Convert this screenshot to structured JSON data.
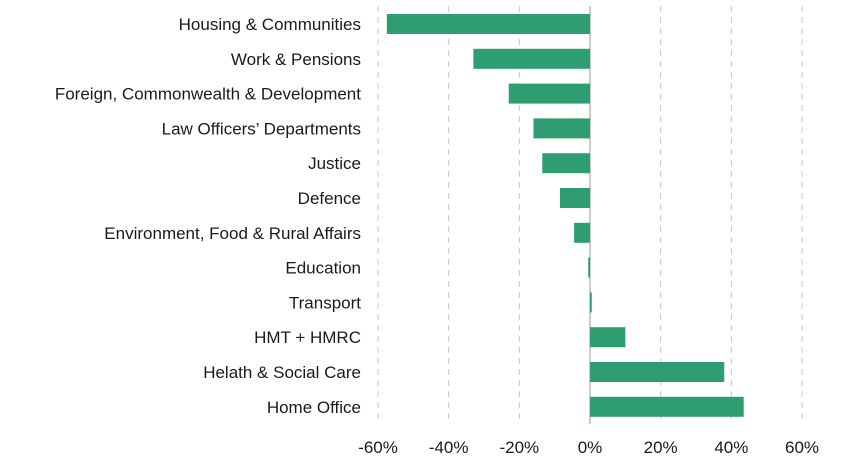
{
  "chart_data": {
    "type": "bar",
    "orientation": "horizontal",
    "title": "",
    "xlabel": "",
    "ylabel": "",
    "categories": [
      "Housing & Communities",
      "Work & Pensions",
      "Foreign, Commonwealth & Development",
      "Law Officers’ Departments",
      "Justice",
      "Defence",
      "Environment, Food & Rural Affairs",
      "Education",
      "Transport",
      "HMT + HMRC",
      "Helath & Social Care",
      "Home Office"
    ],
    "values": [
      -57.5,
      -33,
      -23,
      -16,
      -13.5,
      -8.5,
      -4.5,
      -0.5,
      0.5,
      10,
      38,
      43.5
    ],
    "xlim": [
      -60,
      60
    ],
    "xticks": [
      -60,
      -40,
      -20,
      0,
      20,
      40,
      60
    ],
    "xtick_labels": [
      "-60%",
      "-40%",
      "-20%",
      "0%",
      "20%",
      "40%",
      "60%"
    ],
    "grid": "vertical dashed",
    "legend": "none",
    "bar_color": "#2e9e72"
  }
}
